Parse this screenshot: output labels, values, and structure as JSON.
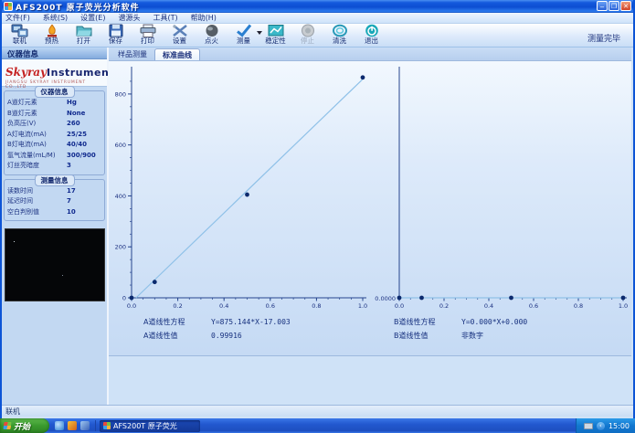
{
  "window": {
    "title": "AFS200T 原子荧光分析软件",
    "status_right": "测量完毕"
  },
  "menu": {
    "items": [
      {
        "label": "文件(F)"
      },
      {
        "label": "系统(S)"
      },
      {
        "label": "设置(E)"
      },
      {
        "label": "谱源头"
      },
      {
        "label": "工具(T)"
      },
      {
        "label": "帮助(H)"
      }
    ]
  },
  "toolbar": {
    "status": "测量完毕",
    "buttons": [
      {
        "label": "联机",
        "icon": "connect",
        "enabled": true
      },
      {
        "label": "预热",
        "icon": "preheat",
        "enabled": true
      },
      {
        "label": "打开",
        "icon": "open",
        "enabled": true
      },
      {
        "label": "保存",
        "icon": "save",
        "enabled": true
      },
      {
        "label": "打印",
        "icon": "print",
        "enabled": true
      },
      {
        "label": "设置",
        "icon": "settings",
        "enabled": true
      },
      {
        "label": "点火",
        "icon": "ignite",
        "enabled": true
      },
      {
        "label": "测量",
        "icon": "measure",
        "enabled": true,
        "dropdown": true
      },
      {
        "label": "稳定性",
        "icon": "stability",
        "enabled": true
      },
      {
        "label": "停止",
        "icon": "stop",
        "enabled": false
      },
      {
        "label": "清洗",
        "icon": "clean",
        "enabled": true
      },
      {
        "label": "退出",
        "icon": "exit",
        "enabled": true
      }
    ]
  },
  "sidebar": {
    "header": "仪器信息",
    "logo": {
      "brand_italic": "Skyray",
      "brand_rest": "Instrument",
      "tagline": "JIANGSU SKYRAY INSTRUMENT CO.,LTD"
    },
    "instrument_info": {
      "title": "仪器信息",
      "rows": [
        {
          "label": "A道灯元素",
          "value": "Hg"
        },
        {
          "label": "B道灯元素",
          "value": "None"
        },
        {
          "label": "负高压(V)",
          "value": "260"
        },
        {
          "label": "A灯电流(mA)",
          "value": "25/25"
        },
        {
          "label": "B灯电流(mA)",
          "value": "40/40"
        },
        {
          "label": "氩气流量(mL/M)",
          "value": "300/900"
        },
        {
          "label": "灯丝亮暗度",
          "value": "3"
        }
      ]
    },
    "measure_info": {
      "title": "测量信息",
      "rows": [
        {
          "label": "读数时间",
          "value": "17"
        },
        {
          "label": "延迟时间",
          "value": "7"
        },
        {
          "label": "空白判别值",
          "value": "10"
        }
      ]
    }
  },
  "tabs": [
    {
      "label": "样品测量",
      "active": false
    },
    {
      "label": "标准曲线",
      "active": true
    }
  ],
  "chart_data": [
    {
      "type": "scatter",
      "name": "A-channel-calibration-curve",
      "x": [
        0.0,
        0.1,
        0.5,
        1.0
      ],
      "y": [
        0,
        62,
        405,
        865
      ],
      "fit_line": {
        "slope": 875.144,
        "intercept": -17.003
      },
      "xticks": [
        "0.0",
        "0.2",
        "0.4",
        "0.6",
        "0.8",
        "1.0"
      ],
      "yticks": [
        "0",
        "200",
        "400",
        "600",
        "800"
      ],
      "xlim": [
        0,
        1.0
      ],
      "ylim": [
        0,
        900
      ],
      "grid": false,
      "equation_label": "A道线性方程",
      "equation": "Y=875.144*X-17.003",
      "r_label": "A道线性值",
      "r_value": "0.99916"
    },
    {
      "type": "scatter",
      "name": "B-channel-calibration-curve",
      "x": [
        0.0,
        0.1,
        0.5,
        1.0
      ],
      "y": [
        0,
        0,
        0,
        0
      ],
      "fit_line": {
        "slope": 0,
        "intercept": 0
      },
      "xticks": [
        "0.0",
        "0.2",
        "0.4",
        "0.6",
        "0.8",
        "1.0"
      ],
      "yticks": [],
      "origin_label": "0.0000",
      "xlim": [
        0,
        1.0
      ],
      "ylim": [
        0,
        900
      ],
      "grid": false,
      "equation_label": "B道线性方程",
      "equation": "Y=0.000*X+0.000",
      "r_label": "B道线性值",
      "r_value": "非数字"
    }
  ],
  "statusbar": {
    "text": "联机"
  },
  "taskbar": {
    "start_label": "开始",
    "task_label": "AFS200T 原子荧光",
    "clock": "15:00"
  },
  "colors": {
    "accent_titlebar": "#0d4ed2",
    "fit_line": "#8fc1e8",
    "data_point": "#0c2a6e",
    "axis": "#26458e",
    "panel_bg": "#c2d8f2",
    "chart_bg_top": "#f2f8fe",
    "chart_bg_bottom": "#c5daf4"
  }
}
